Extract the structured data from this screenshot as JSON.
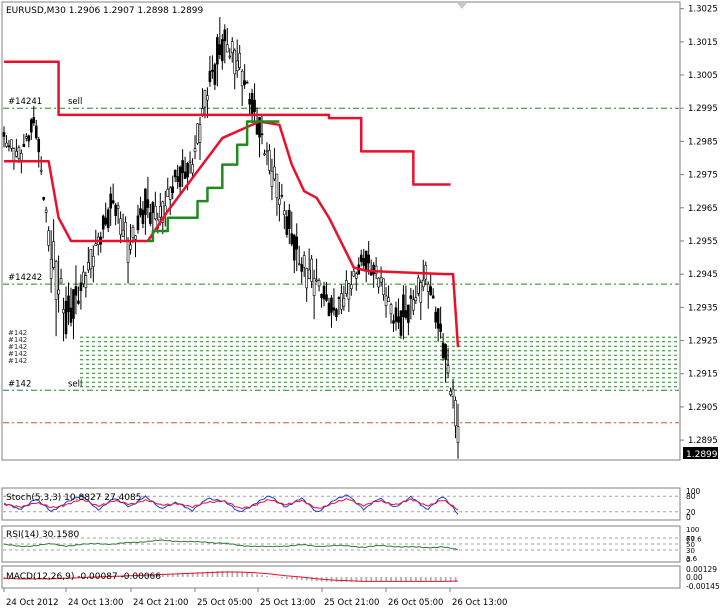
{
  "symbol_header": "EURUSD,M30  1.2906 1.2907 1.2898 1.2899",
  "price_badge": "1.2899",
  "colors": {
    "candle": "#000000",
    "red_line": "#e8102c",
    "green_line": "#1f8a1f",
    "level_line": "#1f8a1f",
    "bid_line": "#e05020",
    "stoch_main": "#1f3cdc",
    "stoch_signal": "#e8102c",
    "rsi": "#2e7d32",
    "macd_hist": "#b0b0b0",
    "macd_signal": "#e8102c",
    "border": "#808080"
  },
  "chart_data": [
    {
      "type": "candlestick",
      "title": "EURUSD,M30  1.2906 1.2907 1.2898 1.2899",
      "ylim": [
        1.2889,
        1.3027
      ],
      "y_ticks": [
        "1.3025",
        "1.3015",
        "1.3005",
        "1.2995",
        "1.2985",
        "1.2975",
        "1.2965",
        "1.2955",
        "1.2945",
        "1.2935",
        "1.2925",
        "1.2915",
        "1.2905",
        "1.2895"
      ],
      "y_tick_values": [
        1.3025,
        1.3015,
        1.3005,
        1.2995,
        1.2985,
        1.2975,
        1.2965,
        1.2955,
        1.2945,
        1.2935,
        1.2925,
        1.2915,
        1.2905,
        1.2895
      ],
      "x_ticks": [
        "24 Oct 2012",
        "24 Oct 13:00",
        "24 Oct 21:00",
        "25 Oct 05:00",
        "25 Oct 13:00",
        "25 Oct 21:00",
        "26 Oct 05:00",
        "26 Oct 13:00"
      ],
      "last_price": 1.2899,
      "anchors": [
        [
          1.2984,
          1.2992,
          1.2978,
          1.2986
        ],
        [
          1.2986,
          1.299,
          1.2976,
          1.298
        ],
        [
          1.298,
          1.2995,
          1.2978,
          1.2992
        ],
        [
          1.2985,
          1.2988,
          1.2945,
          1.295
        ],
        [
          1.295,
          1.2955,
          1.2925,
          1.2932
        ],
        [
          1.2932,
          1.2948,
          1.2928,
          1.2942
        ],
        [
          1.2942,
          1.2958,
          1.2938,
          1.2954
        ],
        [
          1.2954,
          1.2972,
          1.2948,
          1.2968
        ],
        [
          1.2962,
          1.2968,
          1.2945,
          1.2952
        ],
        [
          1.2952,
          1.2972,
          1.2946,
          1.2966
        ],
        [
          1.2966,
          1.2975,
          1.2955,
          1.2962
        ],
        [
          1.2962,
          1.2978,
          1.2958,
          1.2974
        ],
        [
          1.2974,
          1.2985,
          1.2962,
          1.2978
        ],
        [
          1.2978,
          1.3005,
          1.2975,
          1.3
        ],
        [
          1.3,
          1.302,
          1.2995,
          1.3016
        ],
        [
          1.3016,
          1.3022,
          1.3,
          1.3008
        ],
        [
          1.3008,
          1.3012,
          1.2988,
          1.2994
        ],
        [
          1.2994,
          1.2998,
          1.2972,
          1.2978
        ],
        [
          1.2978,
          1.2982,
          1.2955,
          1.2962
        ],
        [
          1.2962,
          1.2966,
          1.294,
          1.2948
        ],
        [
          1.2948,
          1.2955,
          1.2938,
          1.2942
        ],
        [
          1.2942,
          1.295,
          1.2928,
          1.2934
        ],
        [
          1.2934,
          1.2946,
          1.293,
          1.294
        ],
        [
          1.294,
          1.2955,
          1.2936,
          1.295
        ],
        [
          1.295,
          1.2956,
          1.294,
          1.2944
        ],
        [
          1.2944,
          1.295,
          1.2922,
          1.293
        ],
        [
          1.293,
          1.2942,
          1.292,
          1.2936
        ],
        [
          1.2936,
          1.295,
          1.293,
          1.2944
        ],
        [
          1.2944,
          1.2948,
          1.2922,
          1.2926
        ],
        [
          1.2926,
          1.2928,
          1.2896,
          1.2899
        ]
      ],
      "series": [
        {
          "name": "",
          "color": "red_line",
          "steps": [
            [
              0,
              1.3009
            ],
            [
              22,
              1.2993
            ],
            [
              131,
              1.2992
            ],
            [
              144,
              1.2982
            ],
            [
              165,
              1.2972
            ],
            [
              180,
              1.2972
            ]
          ]
        },
        {
          "name": "",
          "color": "red_line",
          "path": [
            [
              0,
              1.2979
            ],
            [
              18,
              1.2979
            ],
            [
              22,
              1.2962
            ],
            [
              27,
              1.2955
            ],
            [
              58,
              1.2955
            ],
            [
              66,
              1.2964
            ],
            [
              78,
              1.2976
            ],
            [
              88,
              1.2986
            ],
            [
              103,
              1.2991
            ],
            [
              111,
              1.299
            ],
            [
              116,
              1.2978
            ],
            [
              121,
              1.297
            ],
            [
              126,
              1.2968
            ],
            [
              131,
              1.2962
            ],
            [
              137,
              1.2953
            ],
            [
              141,
              1.2947
            ],
            [
              146,
              1.2946
            ],
            [
              178,
              1.2945
            ],
            [
              181,
              1.2945
            ],
            [
              183,
              1.2923
            ]
          ]
        },
        {
          "name": "",
          "color": "green_line",
          "steps": [
            [
              58,
              1.2955
            ],
            [
              60,
              1.2958
            ],
            [
              66,
              1.2962
            ],
            [
              78,
              1.2967
            ],
            [
              82,
              1.2971
            ],
            [
              88,
              1.2978
            ],
            [
              94,
              1.2984
            ],
            [
              98,
              1.2991
            ],
            [
              111,
              1.2991
            ]
          ]
        }
      ],
      "levels": [
        {
          "value": 1.2995,
          "label": "#14241",
          "tag": "sell"
        },
        {
          "value": 1.2942,
          "label": "#14242",
          "tag": ""
        },
        {
          "value": 1.291,
          "label": "#142",
          "tag": "sell"
        }
      ],
      "level_labels_stack": [
        "#142",
        "#142",
        "#142",
        "#142",
        "#142"
      ],
      "pending_zone": [
        1.291,
        1.2926
      ]
    },
    {
      "type": "line",
      "title": "Stoch(5,3,3) 10.8827 27.4085",
      "ylim": [
        0,
        100
      ],
      "y_ticks": [
        "100",
        "80",
        "20",
        "0"
      ],
      "y_tick_values": [
        100,
        80,
        20,
        0
      ],
      "anchors_main": [
        50,
        30,
        70,
        20,
        60,
        80,
        30,
        70,
        40,
        80,
        30,
        60,
        20,
        75,
        60,
        20,
        50,
        80,
        40,
        70,
        20,
        60,
        85,
        30,
        70,
        40,
        75,
        30,
        80,
        11
      ],
      "anchors_signal": [
        45,
        40,
        55,
        35,
        50,
        65,
        45,
        60,
        50,
        65,
        45,
        55,
        35,
        60,
        60,
        35,
        45,
        65,
        50,
        60,
        35,
        50,
        70,
        45,
        60,
        50,
        65,
        45,
        65,
        27
      ]
    },
    {
      "type": "line",
      "title": "RSI(14) 30.1580",
      "ylim": [
        0,
        100
      ],
      "y_ticks": [
        "100",
        "70",
        "67.6",
        "50",
        "30",
        "3.6",
        "0"
      ],
      "y_tick_values": [
        100,
        70,
        67.6,
        50,
        30,
        3.6,
        0
      ],
      "anchors": [
        48,
        42,
        45,
        50,
        44,
        48,
        52,
        49,
        55,
        58,
        62,
        60,
        57,
        56,
        53,
        45,
        43,
        40,
        44,
        47,
        42,
        45,
        43,
        40,
        44,
        42,
        40,
        38,
        41,
        30
      ]
    },
    {
      "type": "bar",
      "title": "MACD(12,26,9) -0.00087 -0.00066",
      "ylim": [
        -0.00145,
        0.00129
      ],
      "y_ticks": [
        "0.00129",
        "0.00",
        "-0.00145"
      ],
      "y_tick_values": [
        0.00129,
        0,
        -0.00145
      ],
      "anchors_hist": [
        -0.0004,
        -0.0004,
        -0.0003,
        -0.0002,
        -0.0002,
        0.0001,
        0.0002,
        0.0002,
        0.0003,
        0.0003,
        0.0005,
        0.0006,
        0.0007,
        0.0009,
        0.001,
        0.0009,
        0.0005,
        0.0001,
        -0.0003,
        -0.0005,
        -0.0007,
        -0.0008,
        -0.0008,
        -0.0008,
        -0.0007,
        -0.0007,
        -0.0007,
        -0.0006,
        -0.0007,
        -0.00087
      ],
      "anchors_signal": [
        -0.0002,
        -0.0003,
        -0.0003,
        -0.0003,
        -0.0002,
        -0.0001,
        0.0,
        0.0001,
        0.0002,
        0.0003,
        0.0004,
        0.0005,
        0.0006,
        0.0007,
        0.0008,
        0.0008,
        0.0007,
        0.0005,
        0.0002,
        0.0,
        -0.0003,
        -0.0005,
        -0.0006,
        -0.0007,
        -0.0007,
        -0.0007,
        -0.0007,
        -0.0007,
        -0.0007,
        -0.00066
      ]
    }
  ]
}
